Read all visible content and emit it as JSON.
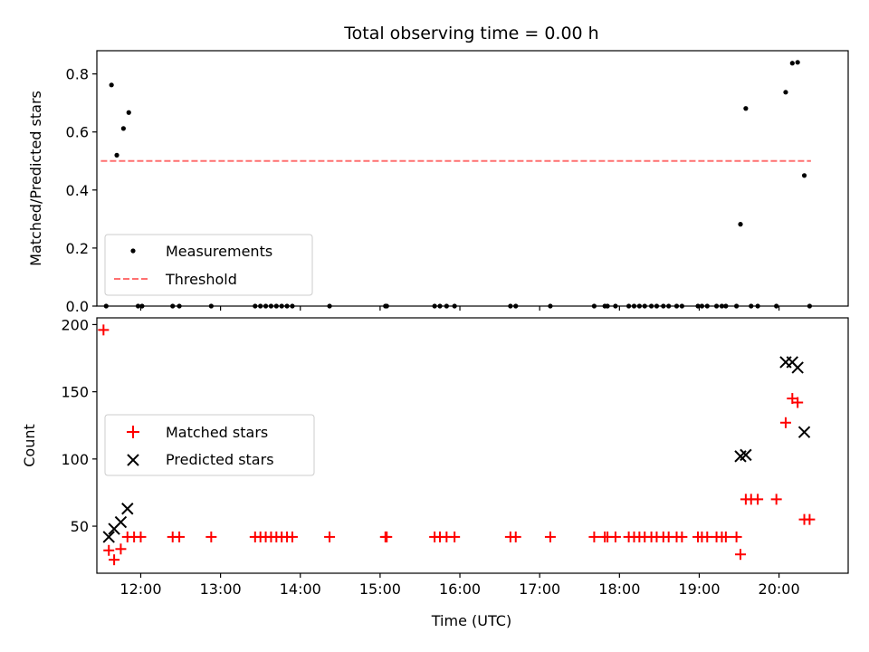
{
  "chart_data": [
    {
      "type": "scatter",
      "title": "Total observing time = 0.00 h",
      "xlabel": "",
      "ylabel": "Matched/Predicted stars",
      "xlim": [
        "11:27",
        "20:52"
      ],
      "ylim": [
        0,
        0.88
      ],
      "yticks": [
        "0.0",
        "0.2",
        "0.4",
        "0.6",
        "0.8"
      ],
      "xticks": [
        "12:00",
        "13:00",
        "14:00",
        "15:00",
        "16:00",
        "17:00",
        "18:00",
        "19:00",
        "20:00"
      ],
      "legend": {
        "location": "lower-left",
        "entries": [
          "Measurements",
          "Threshold"
        ]
      },
      "series": [
        {
          "name": "Measurements",
          "marker": "dot",
          "color": "#000000",
          "points": [
            [
              "11:34",
              0
            ],
            [
              "11:38",
              0.762
            ],
            [
              "11:42",
              0.52
            ],
            [
              "11:47",
              0.612
            ],
            [
              "11:51",
              0.667
            ],
            [
              "11:58",
              0
            ],
            [
              "12:01",
              0
            ],
            [
              "12:24",
              0
            ],
            [
              "12:29",
              0
            ],
            [
              "12:53",
              0
            ],
            [
              "13:26",
              0
            ],
            [
              "13:30",
              0
            ],
            [
              "13:34",
              0
            ],
            [
              "13:38",
              0
            ],
            [
              "13:42",
              0
            ],
            [
              "13:46",
              0
            ],
            [
              "13:50",
              0
            ],
            [
              "13:54",
              0
            ],
            [
              "14:22",
              0
            ],
            [
              "15:04",
              0
            ],
            [
              "15:05",
              0
            ],
            [
              "15:41",
              0
            ],
            [
              "15:45",
              0
            ],
            [
              "15:50",
              0
            ],
            [
              "15:56",
              0
            ],
            [
              "16:38",
              0
            ],
            [
              "16:42",
              0
            ],
            [
              "17:08",
              0
            ],
            [
              "17:41",
              0
            ],
            [
              "17:49",
              0
            ],
            [
              "17:51",
              0
            ],
            [
              "17:57",
              0
            ],
            [
              "18:07",
              0
            ],
            [
              "18:11",
              0
            ],
            [
              "18:15",
              0
            ],
            [
              "18:19",
              0
            ],
            [
              "18:24",
              0
            ],
            [
              "18:28",
              0
            ],
            [
              "18:33",
              0
            ],
            [
              "18:37",
              0
            ],
            [
              "18:43",
              0
            ],
            [
              "18:47",
              0
            ],
            [
              "18:59",
              0
            ],
            [
              "19:02",
              0
            ],
            [
              "19:06",
              0
            ],
            [
              "19:13",
              0
            ],
            [
              "19:17",
              0
            ],
            [
              "19:20",
              0
            ],
            [
              "19:28",
              0
            ],
            [
              "19:31",
              0.282
            ],
            [
              "19:35",
              0.681
            ],
            [
              "19:39",
              0
            ],
            [
              "19:44",
              0
            ],
            [
              "19:58",
              0
            ],
            [
              "20:05",
              0.737
            ],
            [
              "20:10",
              0.837
            ],
            [
              "20:14",
              0.84
            ],
            [
              "20:19",
              0.45
            ],
            [
              "20:23",
              0
            ]
          ]
        },
        {
          "name": "Threshold",
          "type": "line",
          "style": "dashed",
          "color": "#ff7070",
          "points": [
            [
              "11:30",
              0.5
            ],
            [
              "20:24",
              0.5
            ]
          ]
        }
      ]
    },
    {
      "type": "scatter",
      "title": "",
      "xlabel": "Time (UTC)",
      "ylabel": "Count",
      "xlim": [
        "11:27",
        "20:52"
      ],
      "ylim": [
        15,
        205
      ],
      "yticks": [
        "50",
        "100",
        "150",
        "200"
      ],
      "xticks": [
        "12:00",
        "13:00",
        "14:00",
        "15:00",
        "16:00",
        "17:00",
        "18:00",
        "19:00",
        "20:00"
      ],
      "legend": {
        "location": "center-left",
        "entries": [
          "Matched stars",
          "Predicted stars"
        ]
      },
      "series": [
        {
          "name": "Matched stars",
          "marker": "plus",
          "color": "#ff0000",
          "points": [
            [
              "11:32",
              196
            ],
            [
              "11:36",
              32
            ],
            [
              "11:40",
              25
            ],
            [
              "11:45",
              33
            ],
            [
              "11:50",
              42
            ],
            [
              "11:55",
              42
            ],
            [
              "12:00",
              42
            ],
            [
              "12:24",
              42
            ],
            [
              "12:29",
              42
            ],
            [
              "12:53",
              42
            ],
            [
              "13:26",
              42
            ],
            [
              "13:30",
              42
            ],
            [
              "13:34",
              42
            ],
            [
              "13:38",
              42
            ],
            [
              "13:42",
              42
            ],
            [
              "13:46",
              42
            ],
            [
              "13:50",
              42
            ],
            [
              "13:54",
              42
            ],
            [
              "14:22",
              42
            ],
            [
              "15:04",
              42
            ],
            [
              "15:05",
              42
            ],
            [
              "15:41",
              42
            ],
            [
              "15:45",
              42
            ],
            [
              "15:50",
              42
            ],
            [
              "15:56",
              42
            ],
            [
              "16:38",
              42
            ],
            [
              "16:42",
              42
            ],
            [
              "17:08",
              42
            ],
            [
              "17:41",
              42
            ],
            [
              "17:49",
              42
            ],
            [
              "17:51",
              42
            ],
            [
              "17:57",
              42
            ],
            [
              "18:07",
              42
            ],
            [
              "18:11",
              42
            ],
            [
              "18:15",
              42
            ],
            [
              "18:19",
              42
            ],
            [
              "18:24",
              42
            ],
            [
              "18:28",
              42
            ],
            [
              "18:33",
              42
            ],
            [
              "18:37",
              42
            ],
            [
              "18:43",
              42
            ],
            [
              "18:47",
              42
            ],
            [
              "18:59",
              42
            ],
            [
              "19:02",
              42
            ],
            [
              "19:06",
              42
            ],
            [
              "19:13",
              42
            ],
            [
              "19:17",
              42
            ],
            [
              "19:20",
              42
            ],
            [
              "19:28",
              42
            ],
            [
              "19:31",
              29
            ],
            [
              "19:35",
              70
            ],
            [
              "19:39",
              70
            ],
            [
              "19:44",
              70
            ],
            [
              "19:58",
              70
            ],
            [
              "20:05",
              127
            ],
            [
              "20:10",
              145
            ],
            [
              "20:14",
              142
            ],
            [
              "20:19",
              55
            ],
            [
              "20:23",
              55
            ]
          ]
        },
        {
          "name": "Predicted stars",
          "marker": "x",
          "color": "#000000",
          "points": [
            [
              "11:36",
              42
            ],
            [
              "11:40",
              48
            ],
            [
              "11:45",
              53
            ],
            [
              "11:50",
              63
            ],
            [
              "19:31",
              102
            ],
            [
              "19:35",
              103
            ],
            [
              "20:05",
              172
            ],
            [
              "20:10",
              172
            ],
            [
              "20:14",
              168
            ],
            [
              "20:19",
              120
            ]
          ]
        }
      ]
    }
  ]
}
